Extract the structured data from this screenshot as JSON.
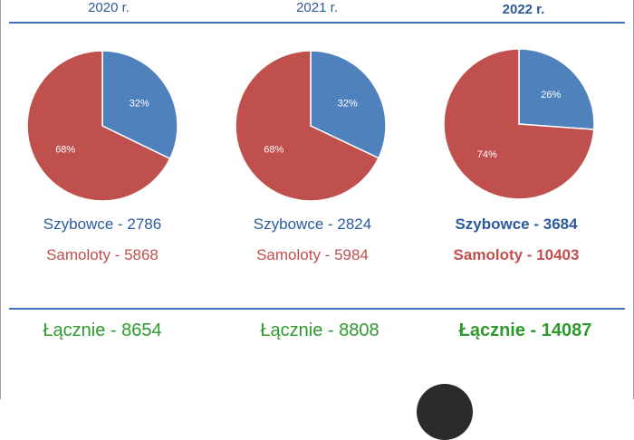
{
  "colors": {
    "gliders": "#4f81bd",
    "planes": "#c0504d",
    "total": "#2e9a2e",
    "rule": "#3f6fb5"
  },
  "chart_data": [
    {
      "type": "pie",
      "title": "2020 r.",
      "categories": [
        "Szybowce",
        "Samoloty"
      ],
      "values": [
        2786,
        5868
      ],
      "percent_labels": [
        "32%",
        "68%"
      ],
      "labels": [
        "Szybowce - 2786",
        "Samoloty - 5868"
      ],
      "total_label": "Łącznie - 8654"
    },
    {
      "type": "pie",
      "title": "2021 r.",
      "categories": [
        "Szybowce",
        "Samoloty"
      ],
      "values": [
        2824,
        5984
      ],
      "percent_labels": [
        "32%",
        "68%"
      ],
      "labels": [
        "Szybowce - 2824",
        "Samoloty - 5984"
      ],
      "total_label": "Łącznie - 8808"
    },
    {
      "type": "pie",
      "title": "2022 r.",
      "categories": [
        "Szybowce",
        "Samoloty"
      ],
      "values": [
        3684,
        10403
      ],
      "percent_labels": [
        "26%",
        "74%"
      ],
      "labels": [
        "Szybowce - 3684",
        "Samoloty - 10403"
      ],
      "total_label": "Łącznie - 14087"
    }
  ],
  "bottom_control": {
    "icon": "circle-button-icon"
  }
}
